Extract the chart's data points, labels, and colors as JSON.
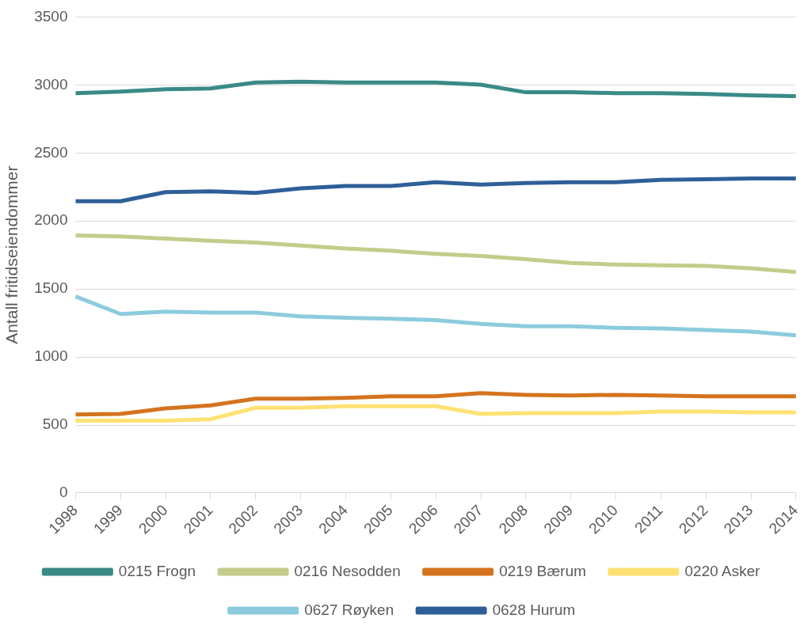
{
  "chart_data": {
    "type": "line",
    "ylabel": "Antall fritidseiendommer",
    "categories": [
      "1998",
      "1999",
      "2000",
      "2001",
      "2002",
      "2003",
      "2004",
      "2005",
      "2006",
      "2007",
      "2008",
      "2009",
      "2010",
      "2011",
      "2012",
      "2013",
      "2014"
    ],
    "series": [
      {
        "name": "0215 Frogn",
        "color": "#3a8a87",
        "values": [
          2940,
          2951,
          2968,
          2974,
          3018,
          3024,
          3018,
          3018,
          3018,
          3002,
          2946,
          2946,
          2940,
          2940,
          2934,
          2923,
          2918
        ]
      },
      {
        "name": "0216 Nesodden",
        "color": "#c3cc8a",
        "values": [
          1893,
          1887,
          1870,
          1854,
          1842,
          1820,
          1798,
          1781,
          1758,
          1742,
          1719,
          1691,
          1680,
          1674,
          1669,
          1652,
          1624
        ]
      },
      {
        "name": "0219 Bærum",
        "color": "#d4731f",
        "values": [
          577,
          582,
          622,
          644,
          694,
          694,
          700,
          711,
          711,
          734,
          722,
          717,
          722,
          717,
          711,
          711,
          711
        ]
      },
      {
        "name": "0220 Asker",
        "color": "#fde173",
        "values": [
          532,
          532,
          532,
          543,
          627,
          627,
          638,
          638,
          638,
          582,
          588,
          588,
          588,
          599,
          599,
          594,
          594
        ]
      },
      {
        "name": "0627 Røyken",
        "color": "#8ccbde",
        "values": [
          1445,
          1316,
          1333,
          1327,
          1327,
          1299,
          1288,
          1282,
          1271,
          1243,
          1226,
          1226,
          1215,
          1210,
          1198,
          1187,
          1159
        ]
      },
      {
        "name": "0628 Hurum",
        "color": "#2e5f98",
        "values": [
          2145,
          2145,
          2212,
          2218,
          2206,
          2240,
          2257,
          2257,
          2285,
          2268,
          2279,
          2285,
          2285,
          2302,
          2307,
          2313,
          2313
        ]
      }
    ],
    "ylim": [
      0,
      3500
    ],
    "yticks": [
      0,
      500,
      1000,
      1500,
      2000,
      2500,
      3000,
      3500
    ],
    "grid": "y",
    "legend": "bottom",
    "marker": "none",
    "line_style": "solid"
  }
}
